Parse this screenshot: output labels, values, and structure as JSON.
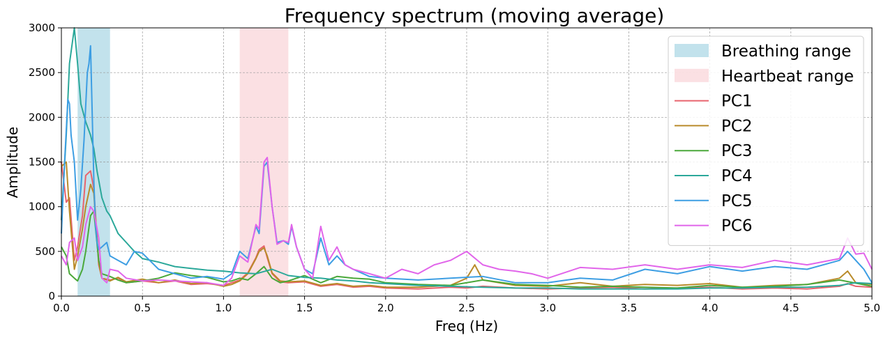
{
  "chart_data": {
    "type": "line",
    "title": "Frequency spectrum (moving average)",
    "xlabel": "Freq (Hz)",
    "ylabel": "Amplitude",
    "xlim": [
      0,
      5
    ],
    "ylim": [
      0,
      3000
    ],
    "xticks": [
      0,
      0.5,
      1.0,
      1.5,
      2.0,
      2.5,
      3.0,
      3.5,
      4.0,
      4.5,
      5.0
    ],
    "xtick_labels": [
      "0.0",
      "0.5",
      "1.0",
      "1.5",
      "2.0",
      "2.5",
      "3.0",
      "3.5",
      "4.0",
      "4.5",
      "5.0"
    ],
    "yticks": [
      0,
      500,
      1000,
      1500,
      2000,
      2500,
      3000
    ],
    "ytick_labels": [
      "0",
      "500",
      "1000",
      "1500",
      "2000",
      "2500",
      "3000"
    ],
    "grid": true,
    "legend_position": "top-right",
    "bands": [
      {
        "name": "Breathing range",
        "x0": 0.1,
        "x1": 0.3,
        "color": "#add8e6"
      },
      {
        "name": "Heartbeat range",
        "x0": 1.1,
        "x1": 1.4,
        "color": "#f9d6da"
      }
    ],
    "series": [
      {
        "name": "PC1",
        "color": "#e8636d",
        "x": [
          0,
          0.03,
          0.05,
          0.08,
          0.1,
          0.13,
          0.15,
          0.18,
          0.2,
          0.23,
          0.25,
          0.3,
          0.35,
          0.4,
          0.5,
          0.6,
          0.7,
          0.8,
          0.9,
          1.0,
          1.05,
          1.1,
          1.15,
          1.2,
          1.22,
          1.25,
          1.27,
          1.3,
          1.35,
          1.4,
          1.5,
          1.6,
          1.7,
          1.8,
          1.9,
          2.0,
          2.2,
          2.4,
          2.5,
          2.6,
          2.8,
          3.0,
          3.2,
          3.4,
          3.6,
          3.8,
          4.0,
          4.2,
          4.4,
          4.6,
          4.8,
          4.85,
          4.9,
          5.0
        ],
        "y": [
          1500,
          1050,
          1100,
          400,
          550,
          900,
          1350,
          1400,
          1200,
          350,
          200,
          180,
          200,
          150,
          170,
          150,
          170,
          130,
          140,
          120,
          150,
          180,
          260,
          430,
          520,
          560,
          430,
          250,
          160,
          150,
          160,
          110,
          130,
          100,
          110,
          90,
          80,
          100,
          90,
          110,
          90,
          80,
          90,
          100,
          80,
          90,
          100,
          80,
          90,
          80,
          110,
          140,
          110,
          100
        ]
      },
      {
        "name": "PC2",
        "color": "#b98b2a",
        "x": [
          0,
          0.03,
          0.05,
          0.08,
          0.1,
          0.13,
          0.15,
          0.18,
          0.2,
          0.23,
          0.25,
          0.3,
          0.35,
          0.4,
          0.5,
          0.6,
          0.7,
          0.8,
          0.9,
          1.0,
          1.05,
          1.1,
          1.15,
          1.2,
          1.22,
          1.25,
          1.27,
          1.3,
          1.35,
          1.4,
          1.5,
          1.6,
          1.7,
          1.8,
          1.9,
          2.0,
          2.2,
          2.4,
          2.5,
          2.55,
          2.6,
          2.8,
          3.0,
          3.2,
          3.4,
          3.6,
          3.8,
          4.0,
          4.2,
          4.4,
          4.6,
          4.8,
          4.85,
          4.9,
          5.0
        ],
        "y": [
          1450,
          1500,
          950,
          300,
          450,
          750,
          1000,
          1250,
          1150,
          380,
          200,
          170,
          210,
          160,
          190,
          150,
          180,
          140,
          150,
          110,
          130,
          170,
          250,
          420,
          500,
          540,
          450,
          260,
          170,
          160,
          170,
          120,
          140,
          110,
          120,
          100,
          100,
          120,
          200,
          350,
          180,
          120,
          110,
          150,
          110,
          130,
          120,
          140,
          100,
          120,
          130,
          200,
          280,
          150,
          130
        ]
      },
      {
        "name": "PC3",
        "color": "#4aa83a",
        "x": [
          0,
          0.03,
          0.05,
          0.08,
          0.1,
          0.13,
          0.15,
          0.18,
          0.2,
          0.23,
          0.25,
          0.3,
          0.35,
          0.4,
          0.5,
          0.6,
          0.7,
          0.8,
          0.9,
          1.0,
          1.05,
          1.1,
          1.15,
          1.2,
          1.25,
          1.3,
          1.35,
          1.4,
          1.5,
          1.6,
          1.7,
          1.8,
          1.9,
          2.0,
          2.2,
          2.4,
          2.6,
          2.8,
          3.0,
          3.2,
          3.4,
          3.6,
          3.8,
          4.0,
          4.2,
          4.4,
          4.6,
          4.8,
          5.0
        ],
        "y": [
          550,
          450,
          250,
          200,
          170,
          300,
          500,
          900,
          950,
          400,
          250,
          220,
          180,
          150,
          170,
          200,
          260,
          230,
          210,
          160,
          170,
          200,
          180,
          250,
          330,
          200,
          150,
          170,
          230,
          150,
          220,
          200,
          190,
          150,
          130,
          120,
          180,
          130,
          120,
          100,
          110,
          100,
          90,
          120,
          100,
          110,
          130,
          180,
          110
        ]
      },
      {
        "name": "PC4",
        "color": "#2ba89a",
        "x": [
          0,
          0.03,
          0.05,
          0.08,
          0.1,
          0.12,
          0.15,
          0.18,
          0.2,
          0.22,
          0.25,
          0.28,
          0.3,
          0.35,
          0.4,
          0.45,
          0.5,
          0.6,
          0.7,
          0.8,
          0.9,
          1.0,
          1.1,
          1.2,
          1.3,
          1.4,
          1.5,
          1.6,
          1.7,
          1.8,
          1.9,
          2.0,
          2.2,
          2.4,
          2.6,
          2.8,
          3.0,
          3.2,
          3.4,
          3.6,
          3.8,
          4.0,
          4.2,
          4.4,
          4.6,
          4.8,
          4.9,
          5.0
        ],
        "y": [
          850,
          1800,
          2600,
          3000,
          2600,
          2150,
          1950,
          1800,
          1650,
          1400,
          1100,
          950,
          900,
          700,
          600,
          500,
          420,
          380,
          330,
          310,
          290,
          280,
          260,
          250,
          300,
          230,
          210,
          200,
          180,
          170,
          150,
          140,
          120,
          110,
          100,
          90,
          90,
          80,
          80,
          80,
          80,
          90,
          90,
          100,
          100,
          120,
          150,
          140
        ]
      },
      {
        "name": "PC5",
        "color": "#3d9ee3",
        "x": [
          0,
          0.02,
          0.04,
          0.05,
          0.06,
          0.08,
          0.1,
          0.12,
          0.14,
          0.16,
          0.17,
          0.18,
          0.2,
          0.21,
          0.22,
          0.23,
          0.25,
          0.28,
          0.3,
          0.35,
          0.4,
          0.45,
          0.5,
          0.6,
          0.7,
          0.8,
          0.9,
          1.0,
          1.05,
          1.1,
          1.15,
          1.2,
          1.22,
          1.25,
          1.27,
          1.3,
          1.33,
          1.37,
          1.4,
          1.42,
          1.45,
          1.5,
          1.55,
          1.6,
          1.65,
          1.7,
          1.75,
          1.8,
          1.9,
          2.0,
          2.2,
          2.4,
          2.6,
          2.8,
          3.0,
          3.2,
          3.4,
          3.6,
          3.8,
          4.0,
          4.2,
          4.4,
          4.6,
          4.8,
          4.85,
          4.9,
          4.95,
          5.0
        ],
        "y": [
          700,
          1500,
          2200,
          2150,
          1800,
          1500,
          850,
          1200,
          1750,
          2500,
          2600,
          2800,
          1300,
          800,
          600,
          520,
          550,
          600,
          450,
          400,
          350,
          500,
          480,
          300,
          250,
          200,
          220,
          190,
          250,
          500,
          420,
          780,
          700,
          1450,
          1500,
          1000,
          600,
          620,
          580,
          780,
          550,
          300,
          250,
          650,
          350,
          450,
          350,
          300,
          220,
          200,
          180,
          200,
          220,
          150,
          150,
          200,
          180,
          300,
          250,
          330,
          280,
          330,
          300,
          400,
          500,
          400,
          300,
          150
        ]
      },
      {
        "name": "PC6",
        "color": "#e165ea",
        "x": [
          0,
          0.03,
          0.05,
          0.08,
          0.1,
          0.13,
          0.15,
          0.18,
          0.2,
          0.23,
          0.25,
          0.28,
          0.3,
          0.35,
          0.4,
          0.5,
          0.6,
          0.7,
          0.8,
          0.9,
          1.0,
          1.05,
          1.1,
          1.15,
          1.2,
          1.22,
          1.25,
          1.27,
          1.3,
          1.33,
          1.37,
          1.4,
          1.42,
          1.45,
          1.5,
          1.55,
          1.6,
          1.65,
          1.7,
          1.75,
          1.8,
          1.9,
          2.0,
          2.1,
          2.2,
          2.3,
          2.4,
          2.5,
          2.6,
          2.7,
          2.8,
          2.9,
          3.0,
          3.2,
          3.4,
          3.6,
          3.8,
          4.0,
          4.2,
          4.4,
          4.6,
          4.8,
          4.85,
          4.9,
          4.95,
          5.0
        ],
        "y": [
          450,
          350,
          600,
          650,
          400,
          550,
          800,
          1000,
          950,
          650,
          200,
          150,
          300,
          280,
          200,
          170,
          180,
          170,
          160,
          150,
          120,
          200,
          450,
          380,
          800,
          750,
          1500,
          1550,
          1000,
          580,
          620,
          600,
          800,
          550,
          300,
          200,
          780,
          400,
          550,
          350,
          300,
          250,
          200,
          300,
          250,
          350,
          400,
          500,
          350,
          300,
          280,
          250,
          200,
          320,
          300,
          350,
          300,
          350,
          320,
          400,
          350,
          420,
          650,
          470,
          480,
          300
        ]
      }
    ]
  }
}
